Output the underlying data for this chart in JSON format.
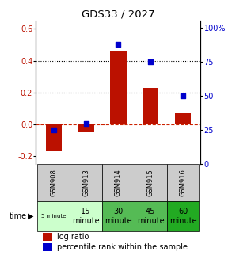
{
  "title": "GDS33 / 2027",
  "samples": [
    "GSM908",
    "GSM913",
    "GSM914",
    "GSM915",
    "GSM916"
  ],
  "log_ratio": [
    -0.17,
    -0.05,
    0.46,
    0.23,
    0.07
  ],
  "percentile_rank": [
    25,
    30,
    88,
    75,
    50
  ],
  "time_labels_line1": [
    "5 minute",
    "15",
    "30",
    "45",
    "60"
  ],
  "time_labels_line2": [
    "",
    "minute",
    "minute",
    "minute",
    "minute"
  ],
  "time_colors": [
    "#ccffcc",
    "#ccffcc",
    "#55bb55",
    "#55bb55",
    "#22aa22"
  ],
  "bar_color": "#bb1100",
  "dot_color": "#0000cc",
  "ylim_left": [
    -0.25,
    0.65
  ],
  "ylim_right": [
    0,
    105
  ],
  "yticks_left": [
    -0.2,
    0.0,
    0.2,
    0.4,
    0.6
  ],
  "yticks_right": [
    0,
    25,
    50,
    75,
    100
  ],
  "ytick_labels_right": [
    "0",
    "25",
    "50",
    "75",
    "100%"
  ],
  "hline0_color": "#cc2200",
  "hline0_style": "--",
  "hline_color": "black",
  "hline_style": ":",
  "label_log": "log ratio",
  "label_pct": "percentile rank within the sample",
  "sample_bg": "#cccccc",
  "bar_width": 0.5
}
